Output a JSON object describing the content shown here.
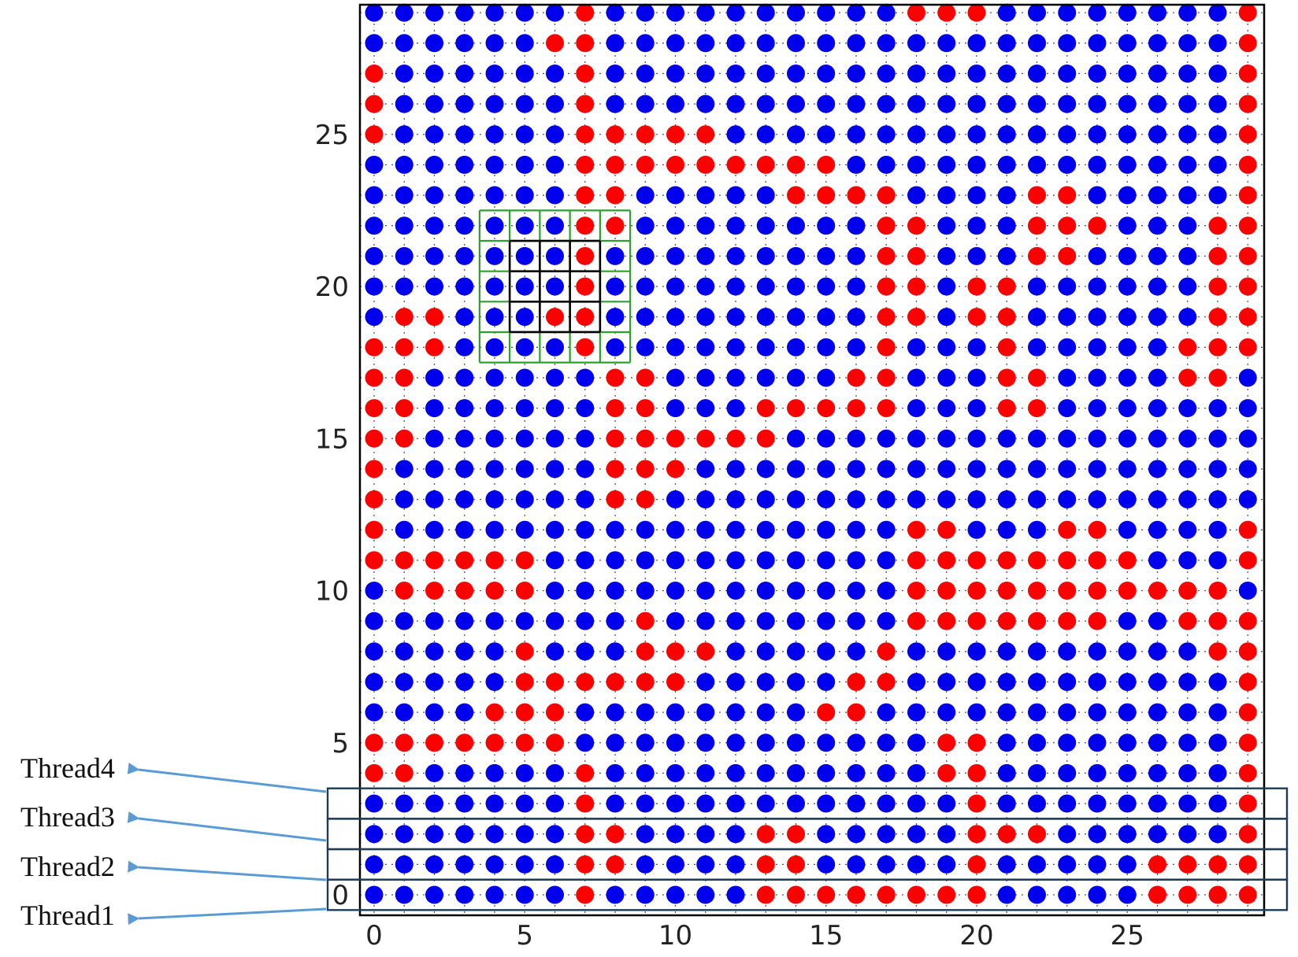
{
  "chart_data": {
    "type": "scatter",
    "title": "",
    "xlabel": "",
    "ylabel": "",
    "xlim": [
      -0.5,
      29.5
    ],
    "ylim": [
      -0.5,
      29.5
    ],
    "grid": "dotted",
    "x_ticks": [
      0,
      5,
      10,
      15,
      20,
      25
    ],
    "y_ticks": [
      0,
      5,
      10,
      15,
      20,
      25
    ],
    "x_tick_labels": [
      "0",
      "5",
      "10",
      "15",
      "20",
      "25"
    ],
    "y_tick_labels": [
      "0",
      "5",
      "10",
      "15",
      "20",
      "25"
    ],
    "colors": {
      "blue": "#0000ee",
      "red": "#ff0000"
    },
    "grid_size": 30,
    "rows_top_to_bottom": [
      "BBBBBBBRBBBBBBBBBBRRRBBBBBBBBR",
      "BBBBBBRRBBBBBBBBBBBBBBBBBBBBBR",
      "RBBBBBBRBBBBBBBBBBBBBBBBBBBBBR",
      "RBBBBBBRBBBBBBBBBBBBBBBBBBBBBR",
      "RBBBBBBRRRRRBBBBBBBBBBBBBBBBBR",
      "BBBBBBBRRRRRRRRRBBBBBBBBBBBBBR",
      "BBBBBBBRRBBBBBRRRRBBBBRRBBBBBR",
      "BBBBBBBRRBBBBBBBBRRBBBRRRBBBRR",
      "BBBBBBBRBBBBBBBBBRRBBBRRBBBBRR",
      "BBBBBBBRBBBBBBBBBRRBRRBBBBBBRR",
      "BRRBBBRRBBBBBBBBBRRBRRBBBBBBRR",
      "RRRBBBBRBBBBBBBBBRBBBRBBBBBRRR",
      "RRBBBBBBRRBBBBBBRRBBBRRBBBBRRB",
      "RRBBBBBBRRBBBRRRRRBBBRRBBBBBBB",
      "RRBBBBBBRRRRRRBBBBBBBBBBBBBBBB",
      "RBBBBBBBRRRBBBBBBBBBBBBBBBBBBB",
      "RBBBBBBBRRBBBBBBBBBBBBBBBBBBBB",
      "RBBBBBBBBBBBBBBBBBRRBBBRRBBBBR",
      "RRRRRRBBBBBBBBBBBBRRRRRRRRBBBR",
      "BRRRRRBBBBBBBBBBBBRRRRRRRRRRRB",
      "BBBBBBBBBRBBBBBBBBRRRRRRRBBRRR",
      "BBBBBRBBBRRRBBBBBRBBBBBBBBBBRR",
      "BBBBBRRRRRRBBBBBRRBBBBBBBBBBBR",
      "BBBBRRRBBBBBBBBRRBBBBBBBBBBBBR",
      "RRRRRRRBBBBBBBBBBBBRRBBBBBBBBR",
      "RRBBBBBRBBBBBBBBBBBRRBBBBBBBBR",
      "BBBBBBBRBBBBBBBBBBBBRBBBBBBBBR",
      "BBBBBBBRRBBBBRRBBBBBRRRBBBBBBR",
      "BBBBBBBRRBBBBRRBBBBBRBBBBBRRRR",
      "BBBBBBBRBBBBBRRRRRRRRBBBBBRRRR"
    ],
    "annotations": {
      "neighborhood_outer": {
        "x_range": [
          4,
          8
        ],
        "y_range": [
          18,
          22
        ]
      },
      "neighborhood_inner": {
        "x_range": [
          5,
          7
        ],
        "y_range": [
          19,
          21
        ]
      },
      "thread_rows": [
        {
          "label": "Thread4",
          "row": 3
        },
        {
          "label": "Thread3",
          "row": 2
        },
        {
          "label": "Thread2",
          "row": 1
        },
        {
          "label": "Thread1",
          "row": 0
        }
      ]
    }
  },
  "thread_labels": [
    "Thread4",
    "Thread3",
    "Thread2",
    "Thread1"
  ]
}
